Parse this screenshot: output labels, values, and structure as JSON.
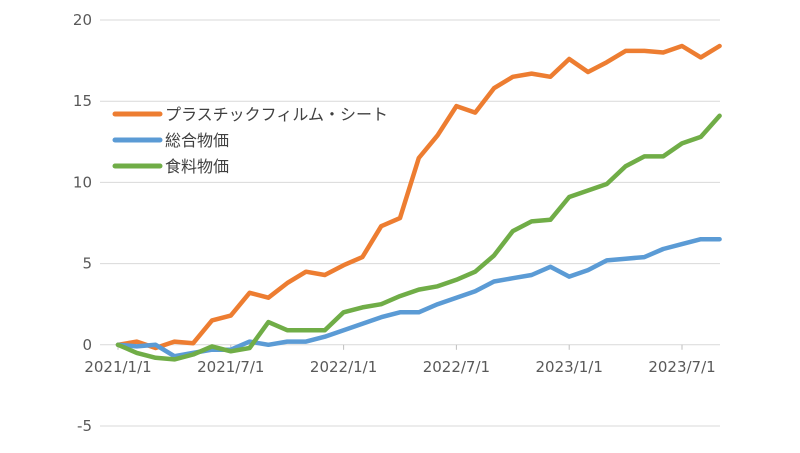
{
  "chart_data": {
    "type": "line",
    "title": "",
    "xlabel": "",
    "ylabel": "",
    "ylim": [
      -5,
      20
    ],
    "y_ticks": [
      "20",
      "15",
      "10",
      "5",
      "0",
      "-5"
    ],
    "x_tick_labels": [
      "2021/1/1",
      "2021/7/1",
      "2022/1/1",
      "2022/7/1",
      "2023/1/1",
      "2023/7/1"
    ],
    "x": [
      "2021/1",
      "2021/2",
      "2021/3",
      "2021/4",
      "2021/5",
      "2021/6",
      "2021/7",
      "2021/8",
      "2021/9",
      "2021/10",
      "2021/11",
      "2021/12",
      "2022/1",
      "2022/2",
      "2022/3",
      "2022/4",
      "2022/5",
      "2022/6",
      "2022/7",
      "2022/8",
      "2022/9",
      "2022/10",
      "2022/11",
      "2022/12",
      "2023/1",
      "2023/2",
      "2023/3",
      "2023/4",
      "2023/5",
      "2023/6",
      "2023/7",
      "2023/8",
      "2023/9"
    ],
    "grid": "horizontal",
    "legend_position": "upper-left",
    "series": [
      {
        "name": "プラスチックフィルム・シート",
        "color": "#ED7D31",
        "values": [
          0,
          0.2,
          -0.2,
          0.2,
          0.1,
          1.5,
          1.8,
          3.2,
          2.9,
          3.8,
          4.5,
          4.3,
          4.9,
          5.4,
          7.3,
          7.8,
          11.5,
          12.9,
          14.7,
          14.3,
          15.8,
          16.5,
          16.7,
          16.5,
          17.6,
          16.8,
          17.4,
          18.1,
          18.1,
          18.0,
          18.4,
          17.7,
          18.4
        ]
      },
      {
        "name": "総合物価",
        "color": "#5B9BD5",
        "values": [
          0,
          -0.1,
          0.0,
          -0.7,
          -0.5,
          -0.3,
          -0.3,
          0.2,
          0.0,
          0.2,
          0.2,
          0.5,
          0.9,
          1.3,
          1.7,
          2.0,
          2.0,
          2.5,
          2.9,
          3.3,
          3.9,
          4.1,
          4.3,
          4.8,
          4.2,
          4.6,
          5.2,
          5.3,
          5.4,
          5.9,
          6.2,
          6.5,
          6.5
        ]
      },
      {
        "name": "食料物価",
        "color": "#70AD47",
        "values": [
          0,
          -0.5,
          -0.8,
          -0.9,
          -0.6,
          -0.1,
          -0.4,
          -0.2,
          1.4,
          0.9,
          0.9,
          0.9,
          2.0,
          2.3,
          2.5,
          3.0,
          3.4,
          3.6,
          4.0,
          4.5,
          5.5,
          7.0,
          7.6,
          7.7,
          9.1,
          9.5,
          9.9,
          11.0,
          11.6,
          11.6,
          12.4,
          12.8,
          14.1
        ]
      }
    ]
  }
}
